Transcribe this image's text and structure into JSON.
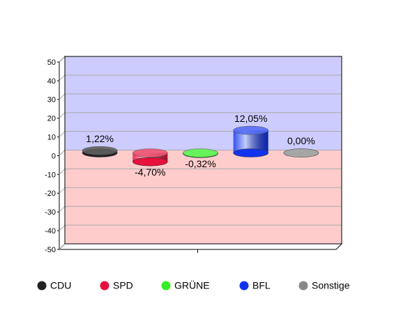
{
  "chart_data": {
    "type": "bar",
    "series": [
      {
        "name": "CDU",
        "color": "#222222",
        "values": [
          1.22
        ],
        "value_labels": [
          "1,22%"
        ]
      },
      {
        "name": "SPD",
        "color": "#e8103c",
        "values": [
          -4.7
        ],
        "value_labels": [
          "-4,70%"
        ]
      },
      {
        "name": "GRÜNE",
        "color": "#33ee22",
        "values": [
          -0.32
        ],
        "value_labels": [
          "-0,32%"
        ]
      },
      {
        "name": "BFL",
        "color": "#1133ee",
        "values": [
          12.05
        ],
        "value_labels": [
          "12,05%"
        ]
      },
      {
        "name": "Sonstige",
        "color": "#888888",
        "values": [
          0.0
        ],
        "value_labels": [
          "0,00%"
        ]
      }
    ],
    "ylim": [
      -50,
      50
    ],
    "yticks": [
      -50,
      -40,
      -30,
      -20,
      -10,
      0,
      10,
      20,
      30,
      40,
      50
    ],
    "grid": true
  }
}
